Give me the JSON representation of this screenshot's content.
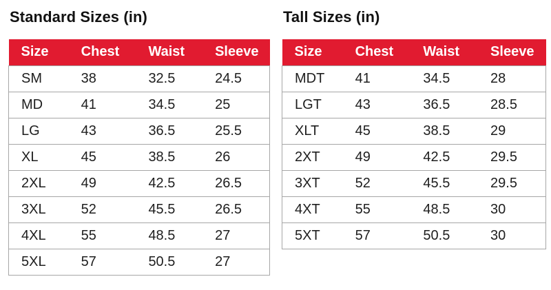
{
  "colors": {
    "header_bg": "#e11b30",
    "header_text": "#ffffff",
    "body_text": "#1e1e1e",
    "title_text": "#121212",
    "border": "#a6a6a6",
    "page_bg": "#ffffff"
  },
  "tables": [
    {
      "title": "Standard Sizes (in)",
      "columns": [
        "Size",
        "Chest",
        "Waist",
        "Sleeve"
      ],
      "rows": [
        [
          "SM",
          "38",
          "32.5",
          "24.5"
        ],
        [
          "MD",
          "41",
          "34.5",
          "25"
        ],
        [
          "LG",
          "43",
          "36.5",
          "25.5"
        ],
        [
          "XL",
          "45",
          "38.5",
          "26"
        ],
        [
          "2XL",
          "49",
          "42.5",
          "26.5"
        ],
        [
          "3XL",
          "52",
          "45.5",
          "26.5"
        ],
        [
          "4XL",
          "55",
          "48.5",
          "27"
        ],
        [
          "5XL",
          "57",
          "50.5",
          "27"
        ]
      ]
    },
    {
      "title": "Tall Sizes (in)",
      "columns": [
        "Size",
        "Chest",
        "Waist",
        "Sleeve"
      ],
      "rows": [
        [
          "MDT",
          "41",
          "34.5",
          "28"
        ],
        [
          "LGT",
          "43",
          "36.5",
          "28.5"
        ],
        [
          "XLT",
          "45",
          "38.5",
          "29"
        ],
        [
          "2XT",
          "49",
          "42.5",
          "29.5"
        ],
        [
          "3XT",
          "52",
          "45.5",
          "29.5"
        ],
        [
          "4XT",
          "55",
          "48.5",
          "30"
        ],
        [
          "5XT",
          "57",
          "50.5",
          "30"
        ]
      ]
    }
  ]
}
